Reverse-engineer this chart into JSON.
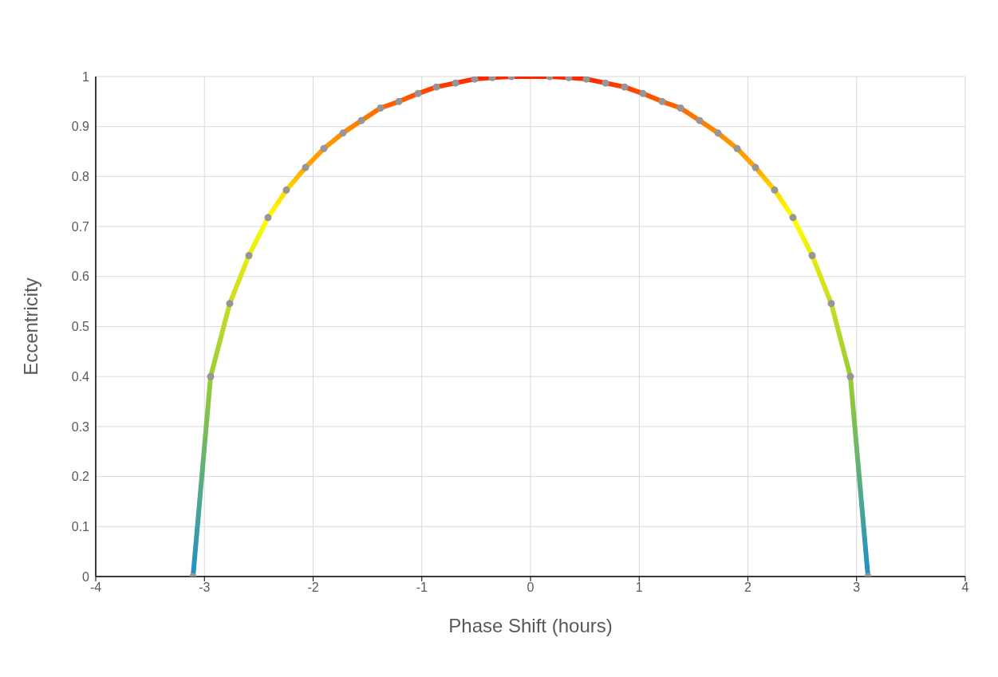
{
  "chart_data": {
    "type": "line",
    "xlabel": "Phase Shift (hours)",
    "ylabel": "Eccentricity",
    "xlim": [
      -4,
      4
    ],
    "xticks": [
      -4,
      -3,
      -2,
      -1,
      0,
      1,
      2,
      3,
      4
    ],
    "ylim": [
      0,
      1
    ],
    "yticks": [
      0,
      0.1,
      0.2,
      0.3,
      0.4,
      0.5,
      0.6,
      0.7,
      0.8,
      0.9,
      1
    ],
    "grid": true,
    "legend": false,
    "marker": "circle",
    "line_style": "solid",
    "series": [
      {
        "color": "#969696",
        "x": [
          -3.105,
          -2.943,
          -2.767,
          -2.591,
          -2.415,
          -2.246,
          -2.07,
          -1.901,
          -1.725,
          -1.556,
          -1.38,
          -1.211,
          -1.035,
          -0.866,
          -0.69,
          -0.514,
          -0.352,
          -0.176,
          0.176,
          0.352,
          0.514,
          0.69,
          0.866,
          1.035,
          1.211,
          1.38,
          1.556,
          1.725,
          1.901,
          2.07,
          2.246,
          2.415,
          2.591,
          2.767,
          2.943,
          3.105
        ],
        "values": [
          0,
          0.4,
          0.546,
          0.642,
          0.718,
          0.773,
          0.818,
          0.856,
          0.887,
          0.912,
          0.937,
          0.95,
          0.966,
          0.979,
          0.987,
          0.995,
          0.998,
          1,
          1,
          0.998,
          0.995,
          0.987,
          0.979,
          0.966,
          0.95,
          0.937,
          0.912,
          0.887,
          0.856,
          0.818,
          0.773,
          0.718,
          0.642,
          0.546,
          0.4,
          0
        ],
        "colors": [
          "#1f8fc8",
          "#9acd32",
          "#c8dc28",
          "#e6ec10",
          "#ffff00",
          "#ffd700",
          "#ffa500",
          "#ff9a00",
          "#ff8c00",
          "#ff7a00",
          "#ff6a00",
          "#ff5a00",
          "#ff4c00",
          "#ff4000",
          "#ff3300",
          "#ff2a00",
          "#ff2600",
          "#ff2200",
          "#ff2200",
          "#ff2600",
          "#ff2a00",
          "#ff3300",
          "#ff4000",
          "#ff4c00",
          "#ff5a00",
          "#ff6a00",
          "#ff7a00",
          "#ff8c00",
          "#ff9a00",
          "#ffa500",
          "#ffd700",
          "#ffff00",
          "#e6ec10",
          "#c8dc28",
          "#9acd32",
          "#1f8fc8"
        ]
      }
    ]
  }
}
